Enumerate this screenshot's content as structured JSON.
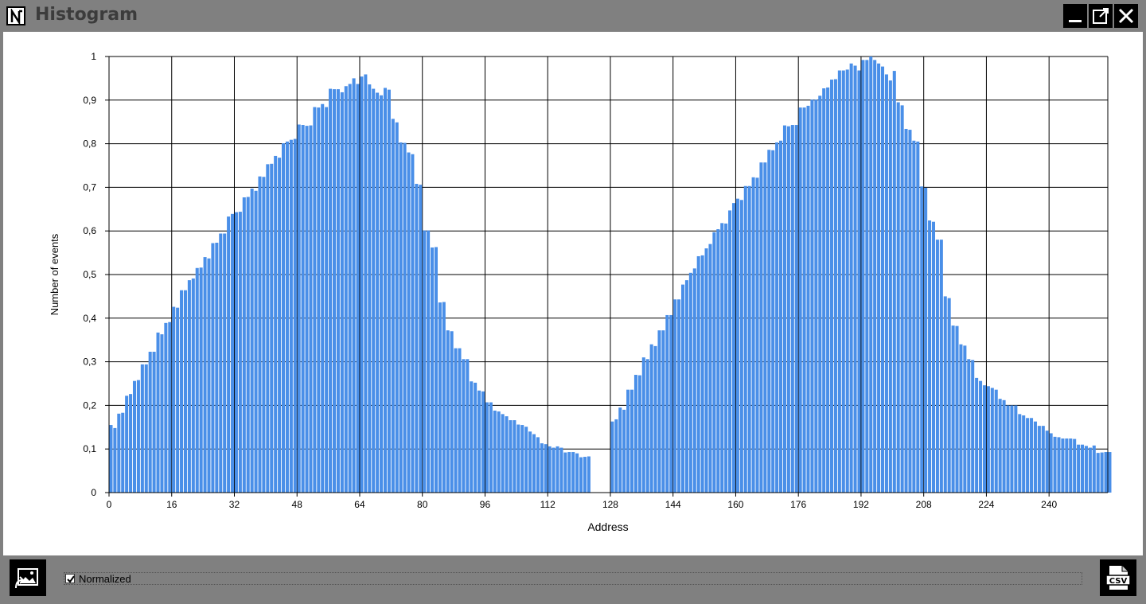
{
  "window": {
    "title": "Histogram",
    "logo_icon": "N-logo-icon",
    "minimize_icon": "minimize-icon",
    "maximize_icon": "popout-icon",
    "close_icon": "close-icon"
  },
  "footer": {
    "save_image_icon": "image-export-icon",
    "csv_icon": "csv-export-icon",
    "normalized_label": "Normalized",
    "normalized_checked": true
  },
  "chart_data": {
    "type": "bar",
    "xlabel": "Address",
    "ylabel": "Number of events",
    "xlim": [
      0,
      255
    ],
    "ylim": [
      0,
      1
    ],
    "x_ticks": [
      "0",
      "16",
      "32",
      "48",
      "64",
      "80",
      "96",
      "112",
      "128",
      "144",
      "160",
      "176",
      "192",
      "208",
      "224",
      "240"
    ],
    "y_ticks": [
      "0",
      "0,1",
      "0,2",
      "0,3",
      "0,4",
      "0,5",
      "0,6",
      "0,7",
      "0,8",
      "0,9",
      "1"
    ],
    "grid": true,
    "bar_color": "#4a8fe8",
    "values": [
      0.155,
      0.148,
      0.181,
      0.183,
      0.222,
      0.226,
      0.256,
      0.258,
      0.294,
      0.294,
      0.323,
      0.323,
      0.367,
      0.363,
      0.389,
      0.391,
      0.426,
      0.424,
      0.464,
      0.464,
      0.487,
      0.491,
      0.515,
      0.516,
      0.54,
      0.537,
      0.572,
      0.573,
      0.594,
      0.594,
      0.633,
      0.639,
      0.643,
      0.644,
      0.677,
      0.678,
      0.697,
      0.692,
      0.725,
      0.724,
      0.753,
      0.754,
      0.772,
      0.768,
      0.801,
      0.805,
      0.809,
      0.811,
      0.844,
      0.843,
      0.841,
      0.842,
      0.884,
      0.883,
      0.891,
      0.884,
      0.926,
      0.925,
      0.925,
      0.918,
      0.932,
      0.937,
      0.95,
      0.937,
      0.954,
      0.959,
      0.936,
      0.926,
      0.917,
      0.911,
      0.928,
      0.924,
      0.857,
      0.849,
      0.803,
      0.802,
      0.78,
      0.776,
      0.708,
      0.706,
      0.601,
      0.601,
      0.562,
      0.563,
      0.436,
      0.437,
      0.372,
      0.37,
      0.331,
      0.331,
      0.306,
      0.306,
      0.255,
      0.252,
      0.234,
      0.232,
      0.207,
      0.207,
      0.188,
      0.186,
      0.18,
      0.175,
      0.166,
      0.166,
      0.156,
      0.155,
      0.151,
      0.14,
      0.134,
      0.127,
      0.113,
      0.111,
      0.106,
      0.103,
      0.106,
      0.103,
      0.092,
      0.093,
      0.093,
      0.09,
      0.081,
      0.082,
      0.083,
      0,
      0,
      0,
      0,
      0,
      0.163,
      0.168,
      0.195,
      0.19,
      0.236,
      0.236,
      0.27,
      0.269,
      0.31,
      0.306,
      0.34,
      0.336,
      0.372,
      0.372,
      0.407,
      0.407,
      0.443,
      0.443,
      0.477,
      0.487,
      0.504,
      0.514,
      0.542,
      0.544,
      0.56,
      0.57,
      0.597,
      0.604,
      0.618,
      0.617,
      0.647,
      0.664,
      0.674,
      0.671,
      0.703,
      0.703,
      0.723,
      0.722,
      0.757,
      0.757,
      0.786,
      0.785,
      0.803,
      0.807,
      0.842,
      0.84,
      0.843,
      0.843,
      0.883,
      0.883,
      0.887,
      0.901,
      0.901,
      0.91,
      0.927,
      0.929,
      0.947,
      0.948,
      0.968,
      0.968,
      0.97,
      0.984,
      0.979,
      0.968,
      0.992,
      0.992,
      1.0,
      0.992,
      0.984,
      0.977,
      0.959,
      0.945,
      0.967,
      0.895,
      0.888,
      0.834,
      0.832,
      0.807,
      0.805,
      0.702,
      0.699,
      0.624,
      0.621,
      0.58,
      0.58,
      0.45,
      0.446,
      0.383,
      0.382,
      0.34,
      0.337,
      0.306,
      0.304,
      0.263,
      0.256,
      0.246,
      0.244,
      0.24,
      0.236,
      0.215,
      0.212,
      0.2,
      0.2,
      0.2,
      0.18,
      0.177,
      0.171,
      0.171,
      0.163,
      0.153,
      0.153,
      0.142,
      0.136,
      0.128,
      0.127,
      0.124,
      0.124,
      0.124,
      0.123,
      0.11,
      0.11,
      0.107,
      0.103,
      0.108,
      0.091,
      0.092,
      0.093,
      0.093
    ]
  }
}
